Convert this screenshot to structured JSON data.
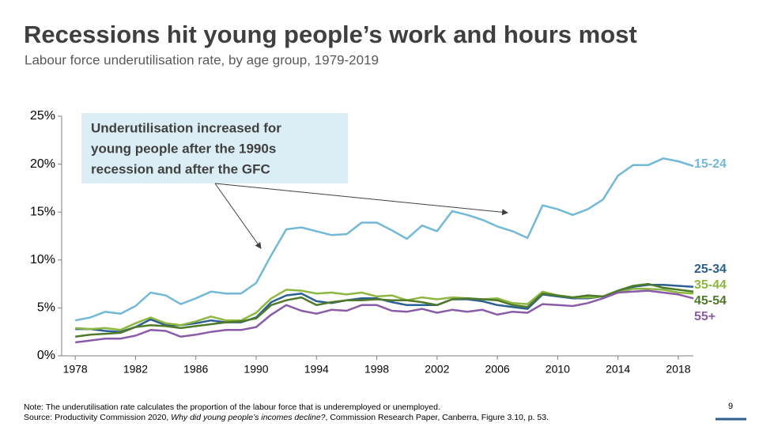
{
  "chart_data": {
    "type": "line",
    "title": "Recessions hit young people’s work and hours most",
    "subtitle": "Labour force underutilisation rate, by age group, 1979-2019",
    "annotation": [
      "Underutilisation increased for",
      "young people after the 1990s",
      "recession and after the GFC"
    ],
    "x": [
      1978,
      1979,
      1980,
      1981,
      1982,
      1983,
      1984,
      1985,
      1986,
      1987,
      1988,
      1989,
      1990,
      1991,
      1992,
      1993,
      1994,
      1995,
      1996,
      1997,
      1998,
      1999,
      2000,
      2001,
      2002,
      2003,
      2004,
      2005,
      2006,
      2007,
      2008,
      2009,
      2010,
      2011,
      2012,
      2013,
      2014,
      2015,
      2016,
      2017,
      2018,
      2019
    ],
    "xlim": [
      1977.1,
      2019
    ],
    "xticks": [
      1978,
      1982,
      1986,
      1990,
      1994,
      1998,
      2002,
      2006,
      2010,
      2014,
      2018
    ],
    "ylim": [
      0,
      25
    ],
    "yticks": [
      {
        "value": 0,
        "label": "0%"
      },
      {
        "value": 5,
        "label": "5%"
      },
      {
        "value": 10,
        "label": "10%"
      },
      {
        "value": 15,
        "label": "15%"
      },
      {
        "value": 20,
        "label": "20%"
      },
      {
        "value": 25,
        "label": "25%"
      }
    ],
    "series": [
      {
        "name": "15-24",
        "color": "#72b9d8",
        "values": [
          3.7,
          4.0,
          4.6,
          4.4,
          5.2,
          6.6,
          6.3,
          5.4,
          6.0,
          6.7,
          6.5,
          6.5,
          7.6,
          10.5,
          13.2,
          13.4,
          13.0,
          12.6,
          12.7,
          13.9,
          13.9,
          13.1,
          12.2,
          13.6,
          13.0,
          15.1,
          14.7,
          14.2,
          13.5,
          13.0,
          12.3,
          15.7,
          15.3,
          14.7,
          15.3,
          16.3,
          18.8,
          19.9,
          19.9,
          20.6,
          20.3,
          19.8
        ]
      },
      {
        "name": "25-34",
        "color": "#2c5f93",
        "values": [
          2.8,
          2.8,
          2.6,
          2.5,
          3.0,
          3.8,
          3.2,
          3.2,
          3.4,
          3.7,
          3.5,
          3.5,
          4.0,
          5.6,
          6.3,
          6.5,
          5.7,
          5.5,
          5.8,
          6.0,
          6.0,
          5.6,
          5.3,
          5.3,
          5.3,
          5.9,
          5.9,
          5.7,
          5.3,
          5.1,
          4.9,
          6.4,
          6.2,
          6.0,
          6.0,
          6.2,
          6.6,
          7.2,
          7.4,
          7.4,
          7.3,
          7.2
        ]
      },
      {
        "name": "35-44",
        "color": "#8db73f",
        "values": [
          2.9,
          2.8,
          2.9,
          2.7,
          3.4,
          4.0,
          3.4,
          3.2,
          3.6,
          4.1,
          3.7,
          3.7,
          4.5,
          6.0,
          6.9,
          6.8,
          6.5,
          6.6,
          6.4,
          6.6,
          6.2,
          6.3,
          5.8,
          6.1,
          5.9,
          6.1,
          6.0,
          5.9,
          6.0,
          5.5,
          5.4,
          6.7,
          6.3,
          6.1,
          6.1,
          6.2,
          6.6,
          7.0,
          7.0,
          6.9,
          6.6,
          6.5
        ]
      },
      {
        "name": "45-54",
        "color": "#4e7a2a",
        "values": [
          2.0,
          2.2,
          2.3,
          2.4,
          3.0,
          3.2,
          3.1,
          2.9,
          3.1,
          3.3,
          3.5,
          3.6,
          3.9,
          5.3,
          5.8,
          6.1,
          5.3,
          5.6,
          5.8,
          5.8,
          5.9,
          5.8,
          5.8,
          5.6,
          5.3,
          5.9,
          6.0,
          5.9,
          5.8,
          5.3,
          5.1,
          6.5,
          6.3,
          6.1,
          6.3,
          6.2,
          6.8,
          7.3,
          7.5,
          7.1,
          6.9,
          6.7
        ]
      },
      {
        "name": "55+",
        "color": "#8a5ba6",
        "values": [
          1.4,
          1.6,
          1.8,
          1.8,
          2.1,
          2.7,
          2.6,
          2.0,
          2.2,
          2.5,
          2.7,
          2.7,
          3.0,
          4.3,
          5.3,
          4.7,
          4.4,
          4.8,
          4.7,
          5.3,
          5.3,
          4.7,
          4.6,
          4.9,
          4.5,
          4.8,
          4.6,
          4.8,
          4.3,
          4.6,
          4.5,
          5.4,
          5.3,
          5.2,
          5.5,
          6.0,
          6.6,
          6.7,
          6.8,
          6.6,
          6.4,
          6.0
        ]
      }
    ]
  },
  "note": "Note: The underutilisation rate calculates the proportion of the labour force that is underemployed or unemployed.",
  "source": [
    "Source: Productivity Commission 2020, ",
    "Why did young people’s incomes decline?",
    ", Commission Research Paper, Canberra, Figure 3.10, p. 53."
  ],
  "page_number": "9"
}
